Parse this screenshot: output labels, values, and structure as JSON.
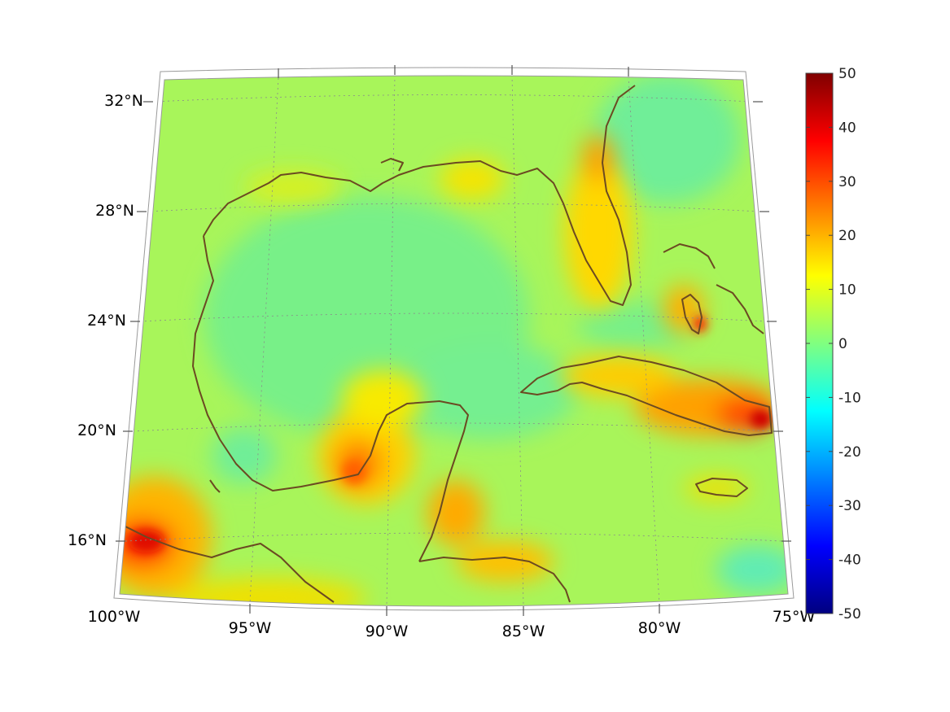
{
  "map": {
    "lat_labels": [
      "32°N",
      "28°N",
      "24°N",
      "20°N",
      "16°N"
    ],
    "lon_labels": [
      "100°W",
      "95°W",
      "90°W",
      "85°W",
      "80°W",
      "75°W"
    ]
  },
  "colorbar": {
    "ticks": [
      "50",
      "40",
      "30",
      "20",
      "10",
      "0",
      "-10",
      "-20",
      "-30",
      "-40",
      "-50"
    ],
    "min": -50,
    "max": 50,
    "colormap": "jet"
  }
}
